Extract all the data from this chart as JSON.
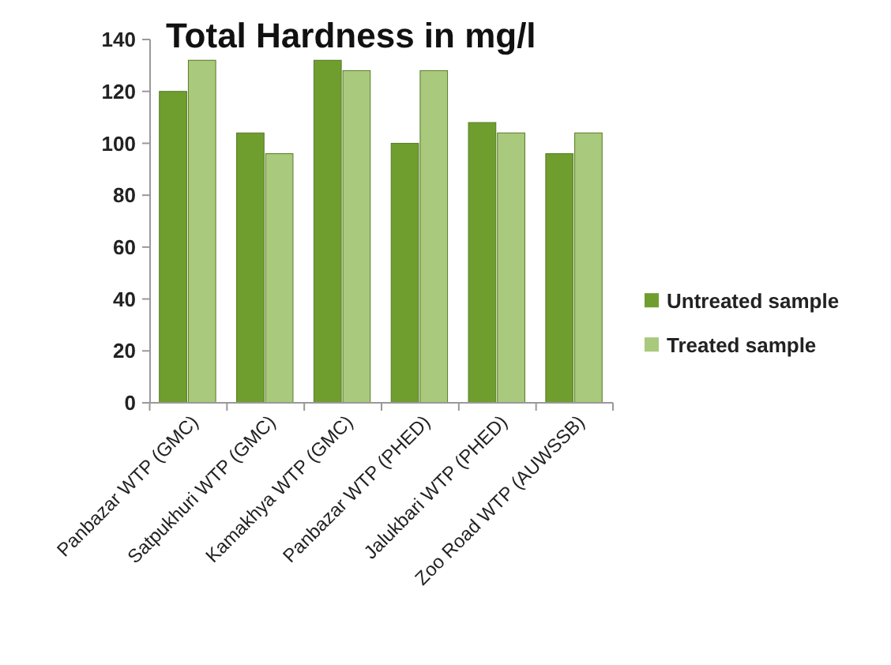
{
  "chart_data": {
    "type": "bar",
    "title": "Total Hardness in mg/l",
    "categories": [
      "Panbazar WTP (GMC)",
      "Satpukhuri WTP (GMC)",
      "Kamakhya WTP (GMC)",
      "Panbazar WTP (PHED)",
      "Jalukbari WTP (PHED)",
      "Zoo Road WTP (AUWSSB)"
    ],
    "series": [
      {
        "name": "Untreated sample",
        "color": "#6f9e2f",
        "values": [
          120,
          104,
          132,
          100,
          108,
          96
        ]
      },
      {
        "name": "Treated sample",
        "color": "#a9c97c",
        "values": [
          132,
          96,
          128,
          128,
          104,
          104
        ]
      }
    ],
    "ylim": [
      0,
      140
    ],
    "yticks": [
      0,
      20,
      40,
      60,
      80,
      100,
      120,
      140
    ],
    "grid": false,
    "legend": "right"
  }
}
